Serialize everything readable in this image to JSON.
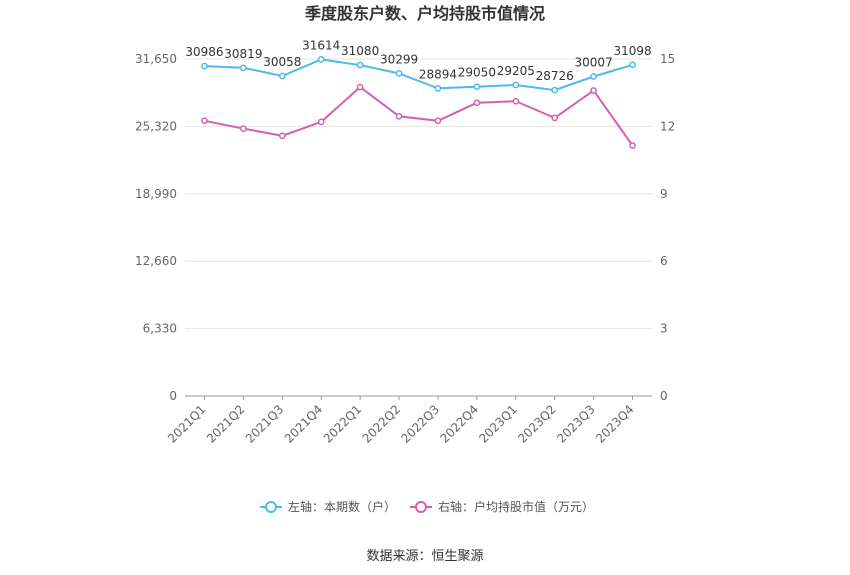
{
  "chart_data": {
    "type": "line",
    "title": "季度股东户数、户均持股市值情况",
    "categories": [
      "2021Q1",
      "2021Q2",
      "2021Q3",
      "2021Q4",
      "2022Q1",
      "2022Q2",
      "2022Q3",
      "2022Q4",
      "2023Q1",
      "2023Q2",
      "2023Q3",
      "2023Q4"
    ],
    "left_axis": {
      "ticks": [
        "0",
        "6,330",
        "12,660",
        "18,990",
        "25,320",
        "31,650"
      ],
      "ylim": [
        0,
        31650
      ]
    },
    "right_axis": {
      "ticks": [
        "0",
        "3",
        "6",
        "9",
        "12",
        "15"
      ],
      "ylim": [
        0,
        15
      ]
    },
    "series": [
      {
        "name": "左轴：本期数（户）",
        "axis": "left",
        "color": "#4fb9ea",
        "values": [
          30986,
          30819,
          30058,
          31614,
          31080,
          30299,
          28894,
          29050,
          29205,
          28726,
          30007,
          31098
        ],
        "labels": [
          "30986",
          "30819",
          "30058",
          "31614",
          "31080",
          "30299",
          "28894",
          "29050",
          "29205",
          "28726",
          "30007",
          "31098"
        ]
      },
      {
        "name": "右轴：户均持股市值（万元）",
        "axis": "right",
        "color": "#d660b0",
        "values": [
          12.25,
          11.9,
          11.58,
          12.2,
          13.75,
          12.45,
          12.25,
          13.05,
          13.12,
          12.38,
          13.6,
          11.15
        ]
      }
    ],
    "grid": true,
    "legend_position": "bottom"
  },
  "footer": {
    "source": "数据来源：恒生聚源"
  }
}
